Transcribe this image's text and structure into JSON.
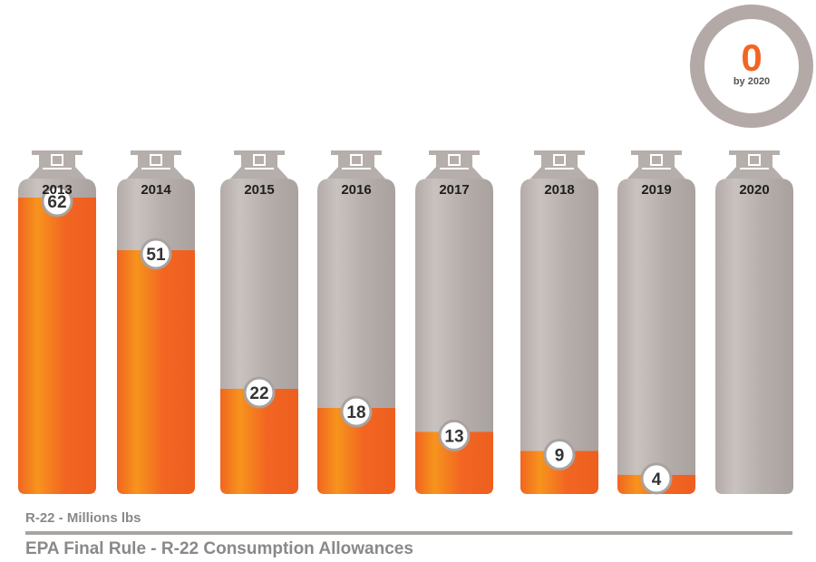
{
  "chart_data": {
    "type": "bar",
    "categories": [
      "2013",
      "2014",
      "2015",
      "2016",
      "2017",
      "2018",
      "2019",
      "2020"
    ],
    "values": [
      62,
      51,
      22,
      18,
      13,
      9,
      4,
      0
    ],
    "value_labels": [
      "62",
      "51",
      "22",
      "18",
      "13",
      "9",
      "4",
      ""
    ],
    "title": "EPA Final Rule - R-22 Consumption Allowances",
    "ylabel": "R-22 - Millions lbs",
    "ylim": [
      0,
      62
    ],
    "grid": false,
    "legend": "none",
    "annotation": {
      "value": "0",
      "text": "by 2020"
    },
    "colors": {
      "fill": "#f26522",
      "fill_highlight": "#f7941d",
      "tank": "#b6aeab",
      "tank_highlight": "#cbc4c1",
      "label_border": "#a8a2a0",
      "label_text": "#333333",
      "badge_ring": "#b3aaa7",
      "badge_value": "#f26522"
    }
  }
}
